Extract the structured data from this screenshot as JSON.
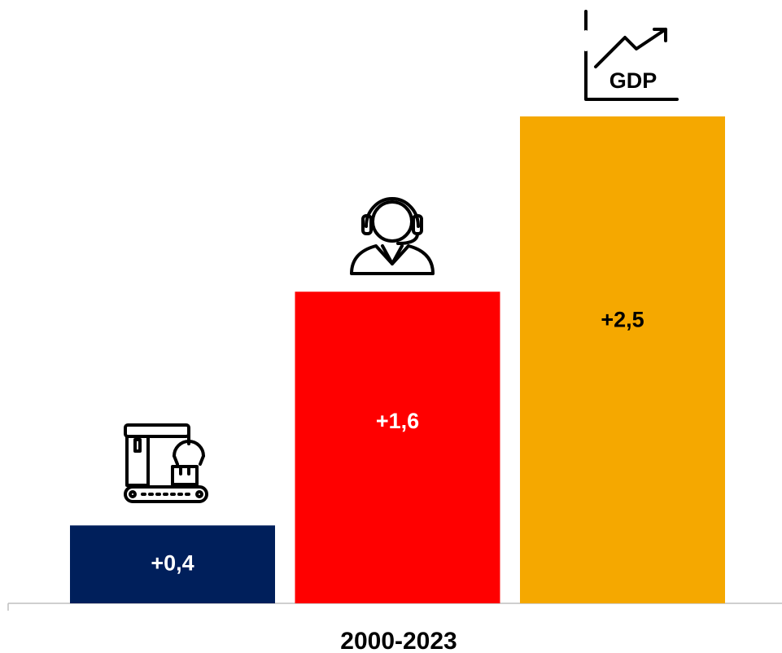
{
  "chart_data": {
    "type": "bar",
    "categories": [
      "2000-2023"
    ],
    "series": [
      {
        "color": "#001f5b",
        "values": [
          0.4
        ],
        "value_labels": [
          "+0,4"
        ],
        "label_color": "#ffffff"
      },
      {
        "color": "#ff0000",
        "values": [
          1.6
        ],
        "value_labels": [
          "+1,6"
        ],
        "label_color": "#ffffff"
      },
      {
        "color": "#f5a800",
        "values": [
          2.5
        ],
        "value_labels": [
          "+2,5"
        ],
        "label_color": "#000000"
      }
    ],
    "annotations": [
      "GDP"
    ],
    "ylim": [
      0,
      2.5
    ]
  }
}
